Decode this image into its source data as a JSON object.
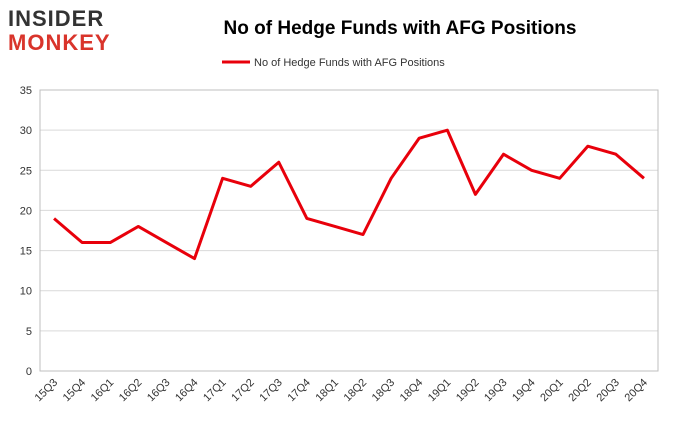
{
  "logo": {
    "line1": "INSIDER",
    "line2": "MONKEY"
  },
  "chart_data": {
    "type": "line",
    "title": "No of Hedge Funds with AFG Positions",
    "categories": [
      "15Q3",
      "15Q4",
      "16Q1",
      "16Q2",
      "16Q3",
      "16Q4",
      "17Q1",
      "17Q2",
      "17Q3",
      "17Q4",
      "18Q1",
      "18Q2",
      "18Q3",
      "18Q4",
      "19Q1",
      "19Q2",
      "19Q3",
      "19Q4",
      "20Q1",
      "20Q2",
      "20Q3",
      "20Q4"
    ],
    "series": [
      {
        "name": "No of Hedge Funds with AFG Positions",
        "color": "#e8000b",
        "values": [
          19,
          16,
          16,
          18,
          16,
          14,
          24,
          23,
          26,
          19,
          18,
          17,
          24,
          29,
          30,
          22,
          27,
          25,
          24,
          28,
          27,
          24
        ]
      }
    ],
    "ylim": [
      0,
      35
    ],
    "yticks": [
      0,
      5,
      10,
      15,
      20,
      25,
      30,
      35
    ],
    "grid": true,
    "legend": "top"
  }
}
